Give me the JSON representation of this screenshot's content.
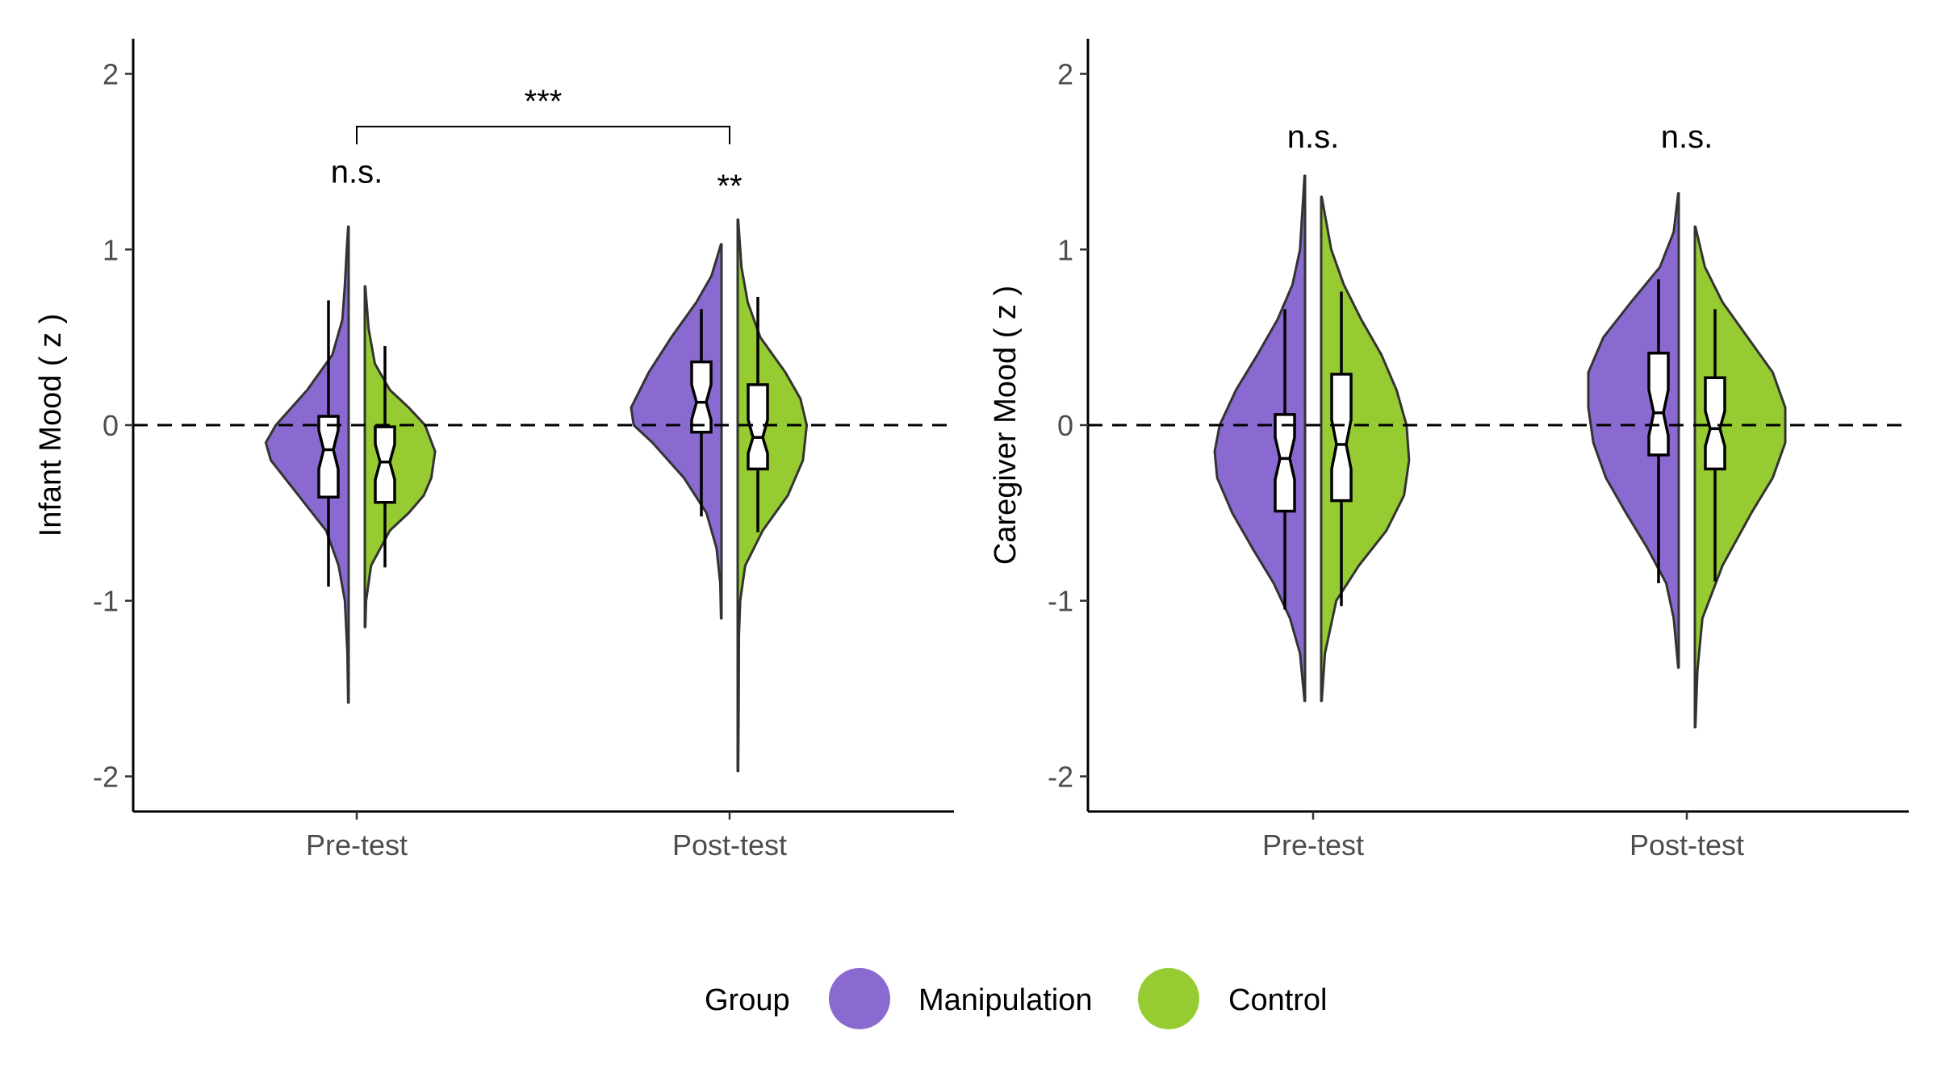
{
  "legend": {
    "title": "Group",
    "items": [
      {
        "label": "Manipulation",
        "color": "#8a6ad0"
      },
      {
        "label": "Control",
        "color": "#97cb32"
      }
    ]
  },
  "chart_data": [
    {
      "type": "violin",
      "ylabel": "Infant Mood ( z )",
      "ylim": [
        -2.2,
        2.2
      ],
      "yticks": [
        "-2",
        "-1",
        "0",
        "1",
        "2"
      ],
      "yticks_values": [
        -2,
        -1,
        0,
        1,
        2
      ],
      "categories": [
        "Pre-test",
        "Post-test"
      ],
      "reference_line": 0,
      "series": [
        {
          "name": "Manipulation",
          "color": "#8a6ad0",
          "groups": [
            {
              "min": -1.58,
              "max": 1.13,
              "whisker_low": -0.92,
              "whisker_high": 0.71,
              "q1": -0.41,
              "median": -0.14,
              "q3": 0.05,
              "notch_low": -0.25,
              "notch_high": -0.03,
              "density": [
                [
                  -1.58,
                  0.004
                ],
                [
                  -1.3,
                  0.01
                ],
                [
                  -1.0,
                  0.03
                ],
                [
                  -0.8,
                  0.08
                ],
                [
                  -0.6,
                  0.18
                ],
                [
                  -0.4,
                  0.4
                ],
                [
                  -0.2,
                  0.62
                ],
                [
                  -0.1,
                  0.66
                ],
                [
                  0.0,
                  0.58
                ],
                [
                  0.2,
                  0.33
                ],
                [
                  0.4,
                  0.13
                ],
                [
                  0.6,
                  0.05
                ],
                [
                  0.8,
                  0.03
                ],
                [
                  1.0,
                  0.015
                ],
                [
                  1.13,
                  0.004
                ]
              ]
            },
            {
              "min": -1.1,
              "max": 1.03,
              "whisker_low": -0.52,
              "whisker_high": 0.66,
              "q1": -0.04,
              "median": 0.13,
              "q3": 0.36,
              "notch_low": 0.03,
              "notch_high": 0.23,
              "density": [
                [
                  -1.1,
                  0.004
                ],
                [
                  -0.9,
                  0.01
                ],
                [
                  -0.7,
                  0.04
                ],
                [
                  -0.5,
                  0.12
                ],
                [
                  -0.3,
                  0.3
                ],
                [
                  -0.1,
                  0.55
                ],
                [
                  0.0,
                  0.7
                ],
                [
                  0.1,
                  0.72
                ],
                [
                  0.2,
                  0.65
                ],
                [
                  0.3,
                  0.58
                ],
                [
                  0.5,
                  0.4
                ],
                [
                  0.7,
                  0.2
                ],
                [
                  0.85,
                  0.08
                ],
                [
                  1.03,
                  0.004
                ]
              ]
            }
          ]
        },
        {
          "name": "Control",
          "color": "#97cb32",
          "groups": [
            {
              "min": -1.15,
              "max": 0.79,
              "whisker_low": -0.81,
              "whisker_high": 0.45,
              "q1": -0.44,
              "median": -0.21,
              "q3": -0.01,
              "notch_low": -0.31,
              "notch_high": -0.11,
              "density": [
                [
                  -1.15,
                  0.004
                ],
                [
                  -1.0,
                  0.01
                ],
                [
                  -0.8,
                  0.05
                ],
                [
                  -0.6,
                  0.2
                ],
                [
                  -0.5,
                  0.35
                ],
                [
                  -0.4,
                  0.47
                ],
                [
                  -0.3,
                  0.53
                ],
                [
                  -0.15,
                  0.56
                ],
                [
                  0.0,
                  0.48
                ],
                [
                  0.1,
                  0.35
                ],
                [
                  0.2,
                  0.2
                ],
                [
                  0.35,
                  0.08
                ],
                [
                  0.55,
                  0.03
                ],
                [
                  0.79,
                  0.004
                ]
              ]
            },
            {
              "min": -1.97,
              "max": 1.17,
              "whisker_low": -0.61,
              "whisker_high": 0.73,
              "q1": -0.25,
              "median": -0.07,
              "q3": 0.23,
              "notch_low": -0.16,
              "notch_high": 0.03,
              "density": [
                [
                  -1.97,
                  0.004
                ],
                [
                  -1.6,
                  0.008
                ],
                [
                  -1.2,
                  0.01
                ],
                [
                  -1.0,
                  0.02
                ],
                [
                  -0.8,
                  0.06
                ],
                [
                  -0.6,
                  0.2
                ],
                [
                  -0.4,
                  0.4
                ],
                [
                  -0.2,
                  0.52
                ],
                [
                  0.0,
                  0.55
                ],
                [
                  0.15,
                  0.5
                ],
                [
                  0.3,
                  0.38
                ],
                [
                  0.5,
                  0.18
                ],
                [
                  0.7,
                  0.08
                ],
                [
                  0.9,
                  0.03
                ],
                [
                  1.17,
                  0.004
                ]
              ]
            }
          ]
        }
      ],
      "annotations": [
        {
          "text": "n.s.",
          "category": "Pre-test",
          "y": 1.38
        },
        {
          "text": "**",
          "category": "Post-test",
          "y": 1.3
        }
      ],
      "bracket": {
        "from": "Pre-test",
        "to": "Post-test",
        "y": 1.7,
        "text": "***"
      }
    },
    {
      "type": "violin",
      "ylabel": "Caregiver Mood ( z )",
      "ylim": [
        -2.2,
        2.2
      ],
      "yticks": [
        "-2",
        "-1",
        "0",
        "1",
        "2"
      ],
      "yticks_values": [
        -2,
        -1,
        0,
        1,
        2
      ],
      "categories": [
        "Pre-test",
        "Post-test"
      ],
      "reference_line": 0,
      "series": [
        {
          "name": "Manipulation",
          "color": "#8a6ad0",
          "groups": [
            {
              "min": -1.57,
              "max": 1.42,
              "whisker_low": -1.05,
              "whisker_high": 0.66,
              "q1": -0.49,
              "median": -0.19,
              "q3": 0.06,
              "notch_low": -0.31,
              "notch_high": -0.07,
              "density": [
                [
                  -1.57,
                  0.004
                ],
                [
                  -1.3,
                  0.04
                ],
                [
                  -1.1,
                  0.12
                ],
                [
                  -0.9,
                  0.25
                ],
                [
                  -0.7,
                  0.42
                ],
                [
                  -0.5,
                  0.58
                ],
                [
                  -0.3,
                  0.7
                ],
                [
                  -0.15,
                  0.72
                ],
                [
                  0.0,
                  0.68
                ],
                [
                  0.2,
                  0.55
                ],
                [
                  0.4,
                  0.38
                ],
                [
                  0.6,
                  0.22
                ],
                [
                  0.8,
                  0.1
                ],
                [
                  1.0,
                  0.04
                ],
                [
                  1.42,
                  0.004
                ]
              ]
            },
            {
              "min": -1.38,
              "max": 1.32,
              "whisker_low": -0.9,
              "whisker_high": 0.83,
              "q1": -0.17,
              "median": 0.07,
              "q3": 0.41,
              "notch_low": -0.06,
              "notch_high": 0.2,
              "density": [
                [
                  -1.38,
                  0.004
                ],
                [
                  -1.1,
                  0.04
                ],
                [
                  -0.9,
                  0.1
                ],
                [
                  -0.7,
                  0.25
                ],
                [
                  -0.5,
                  0.42
                ],
                [
                  -0.3,
                  0.58
                ],
                [
                  -0.1,
                  0.68
                ],
                [
                  0.1,
                  0.72
                ],
                [
                  0.3,
                  0.72
                ],
                [
                  0.5,
                  0.6
                ],
                [
                  0.7,
                  0.38
                ],
                [
                  0.9,
                  0.15
                ],
                [
                  1.1,
                  0.04
                ],
                [
                  1.32,
                  0.004
                ]
              ]
            }
          ]
        },
        {
          "name": "Control",
          "color": "#97cb32",
          "groups": [
            {
              "min": -1.57,
              "max": 1.3,
              "whisker_low": -1.03,
              "whisker_high": 0.76,
              "q1": -0.43,
              "median": -0.11,
              "q3": 0.29,
              "notch_low": -0.25,
              "notch_high": 0.03,
              "density": [
                [
                  -1.57,
                  0.004
                ],
                [
                  -1.3,
                  0.03
                ],
                [
                  -1.0,
                  0.12
                ],
                [
                  -0.8,
                  0.3
                ],
                [
                  -0.6,
                  0.52
                ],
                [
                  -0.4,
                  0.66
                ],
                [
                  -0.2,
                  0.7
                ],
                [
                  0.0,
                  0.68
                ],
                [
                  0.2,
                  0.6
                ],
                [
                  0.4,
                  0.48
                ],
                [
                  0.6,
                  0.32
                ],
                [
                  0.8,
                  0.18
                ],
                [
                  1.0,
                  0.08
                ],
                [
                  1.3,
                  0.004
                ]
              ]
            },
            {
              "min": -1.72,
              "max": 1.13,
              "whisker_low": -0.89,
              "whisker_high": 0.66,
              "q1": -0.25,
              "median": -0.02,
              "q3": 0.27,
              "notch_low": -0.12,
              "notch_high": 0.08,
              "density": [
                [
                  -1.72,
                  0.004
                ],
                [
                  -1.4,
                  0.02
                ],
                [
                  -1.1,
                  0.06
                ],
                [
                  -0.8,
                  0.22
                ],
                [
                  -0.5,
                  0.45
                ],
                [
                  -0.3,
                  0.62
                ],
                [
                  -0.1,
                  0.72
                ],
                [
                  0.1,
                  0.72
                ],
                [
                  0.3,
                  0.62
                ],
                [
                  0.5,
                  0.42
                ],
                [
                  0.7,
                  0.22
                ],
                [
                  0.9,
                  0.08
                ],
                [
                  1.13,
                  0.004
                ]
              ]
            }
          ]
        }
      ],
      "annotations": [
        {
          "text": "n.s.",
          "category": "Pre-test",
          "y": 1.58
        },
        {
          "text": "n.s.",
          "category": "Post-test",
          "y": 1.58
        }
      ]
    }
  ]
}
